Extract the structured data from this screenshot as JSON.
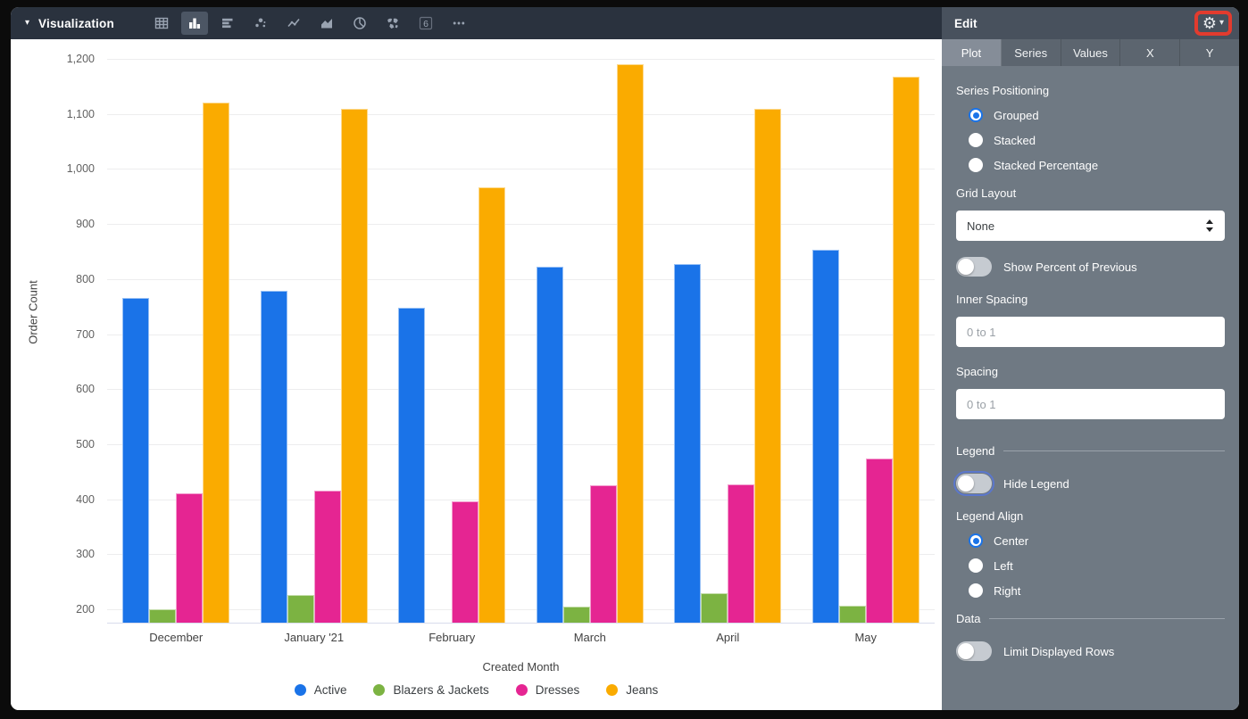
{
  "toolbar": {
    "title": "Visualization",
    "chart_types": [
      {
        "name": "table",
        "selected": false
      },
      {
        "name": "column",
        "selected": true
      },
      {
        "name": "bar",
        "selected": false
      },
      {
        "name": "scatter",
        "selected": false
      },
      {
        "name": "line",
        "selected": false
      },
      {
        "name": "area",
        "selected": false
      },
      {
        "name": "pie",
        "selected": false
      },
      {
        "name": "map",
        "selected": false
      },
      {
        "name": "single-value",
        "selected": false
      },
      {
        "name": "more",
        "selected": false
      }
    ]
  },
  "chart_data": {
    "type": "bar",
    "variant": "grouped",
    "title": "",
    "xlabel": "Created Month",
    "ylabel": "Order Count",
    "categories": [
      "December",
      "January '21",
      "February",
      "March",
      "April",
      "May"
    ],
    "series": [
      {
        "name": "Active",
        "color": "#1a73e8",
        "values": [
          766,
          779,
          748,
          823,
          828,
          853
        ]
      },
      {
        "name": "Blazers & Jackets",
        "color": "#7cb342",
        "values": [
          201,
          227,
          null,
          205,
          229,
          207
        ]
      },
      {
        "name": "Dresses",
        "color": "#e52592",
        "values": [
          411,
          415,
          397,
          425,
          427,
          474
        ]
      },
      {
        "name": "Jeans",
        "color": "#faab00",
        "values": [
          1121,
          1109,
          967,
          1190,
          1109,
          1168
        ]
      }
    ],
    "y_ticks": [
      {
        "value": 200,
        "label": "200"
      },
      {
        "value": 300,
        "label": "300"
      },
      {
        "value": 400,
        "label": "400"
      },
      {
        "value": 500,
        "label": "500"
      },
      {
        "value": 600,
        "label": "600"
      },
      {
        "value": 700,
        "label": "700"
      },
      {
        "value": 800,
        "label": "800"
      },
      {
        "value": 900,
        "label": "900"
      },
      {
        "value": 1000,
        "label": "1,000"
      },
      {
        "value": 1100,
        "label": "1,100"
      },
      {
        "value": 1200,
        "label": "1,200"
      }
    ],
    "ylim": [
      176,
      1216
    ],
    "grid": true,
    "legend_position": "bottom-center",
    "note": "February 'Blazers & Jackets' bar is below the visible y-axis minimum and is not drawn"
  },
  "edit_panel": {
    "title": "Edit",
    "tabs": [
      {
        "label": "Plot",
        "active": true
      },
      {
        "label": "Series",
        "active": false
      },
      {
        "label": "Values",
        "active": false
      },
      {
        "label": "X",
        "active": false
      },
      {
        "label": "Y",
        "active": false
      }
    ],
    "series_positioning": {
      "label": "Series Positioning",
      "options": [
        {
          "label": "Grouped",
          "selected": true
        },
        {
          "label": "Stacked",
          "selected": false
        },
        {
          "label": "Stacked Percentage",
          "selected": false
        }
      ]
    },
    "grid_layout": {
      "label": "Grid Layout",
      "value": "None"
    },
    "show_percent_of_previous": {
      "label": "Show Percent of Previous",
      "on": false,
      "focused": false
    },
    "inner_spacing": {
      "label": "Inner Spacing",
      "value": "",
      "placeholder": "0 to 1"
    },
    "spacing": {
      "label": "Spacing",
      "value": "",
      "placeholder": "0 to 1"
    },
    "legend_section": {
      "header": "Legend"
    },
    "hide_legend": {
      "label": "Hide Legend",
      "on": false,
      "focused": true
    },
    "legend_align": {
      "label": "Legend Align",
      "options": [
        {
          "label": "Center",
          "selected": true
        },
        {
          "label": "Left",
          "selected": false
        },
        {
          "label": "Right",
          "selected": false
        }
      ]
    },
    "data_section": {
      "header": "Data"
    },
    "limit_displayed_rows": {
      "label": "Limit Displayed Rows",
      "on": false,
      "focused": false
    }
  },
  "colors": {
    "toolbar_bg": "#2a323e",
    "panel_bg": "#6f7983",
    "panel_header_bg": "#48515d",
    "accent_blue": "#1a73e8",
    "highlight_red": "#e23b2e"
  }
}
